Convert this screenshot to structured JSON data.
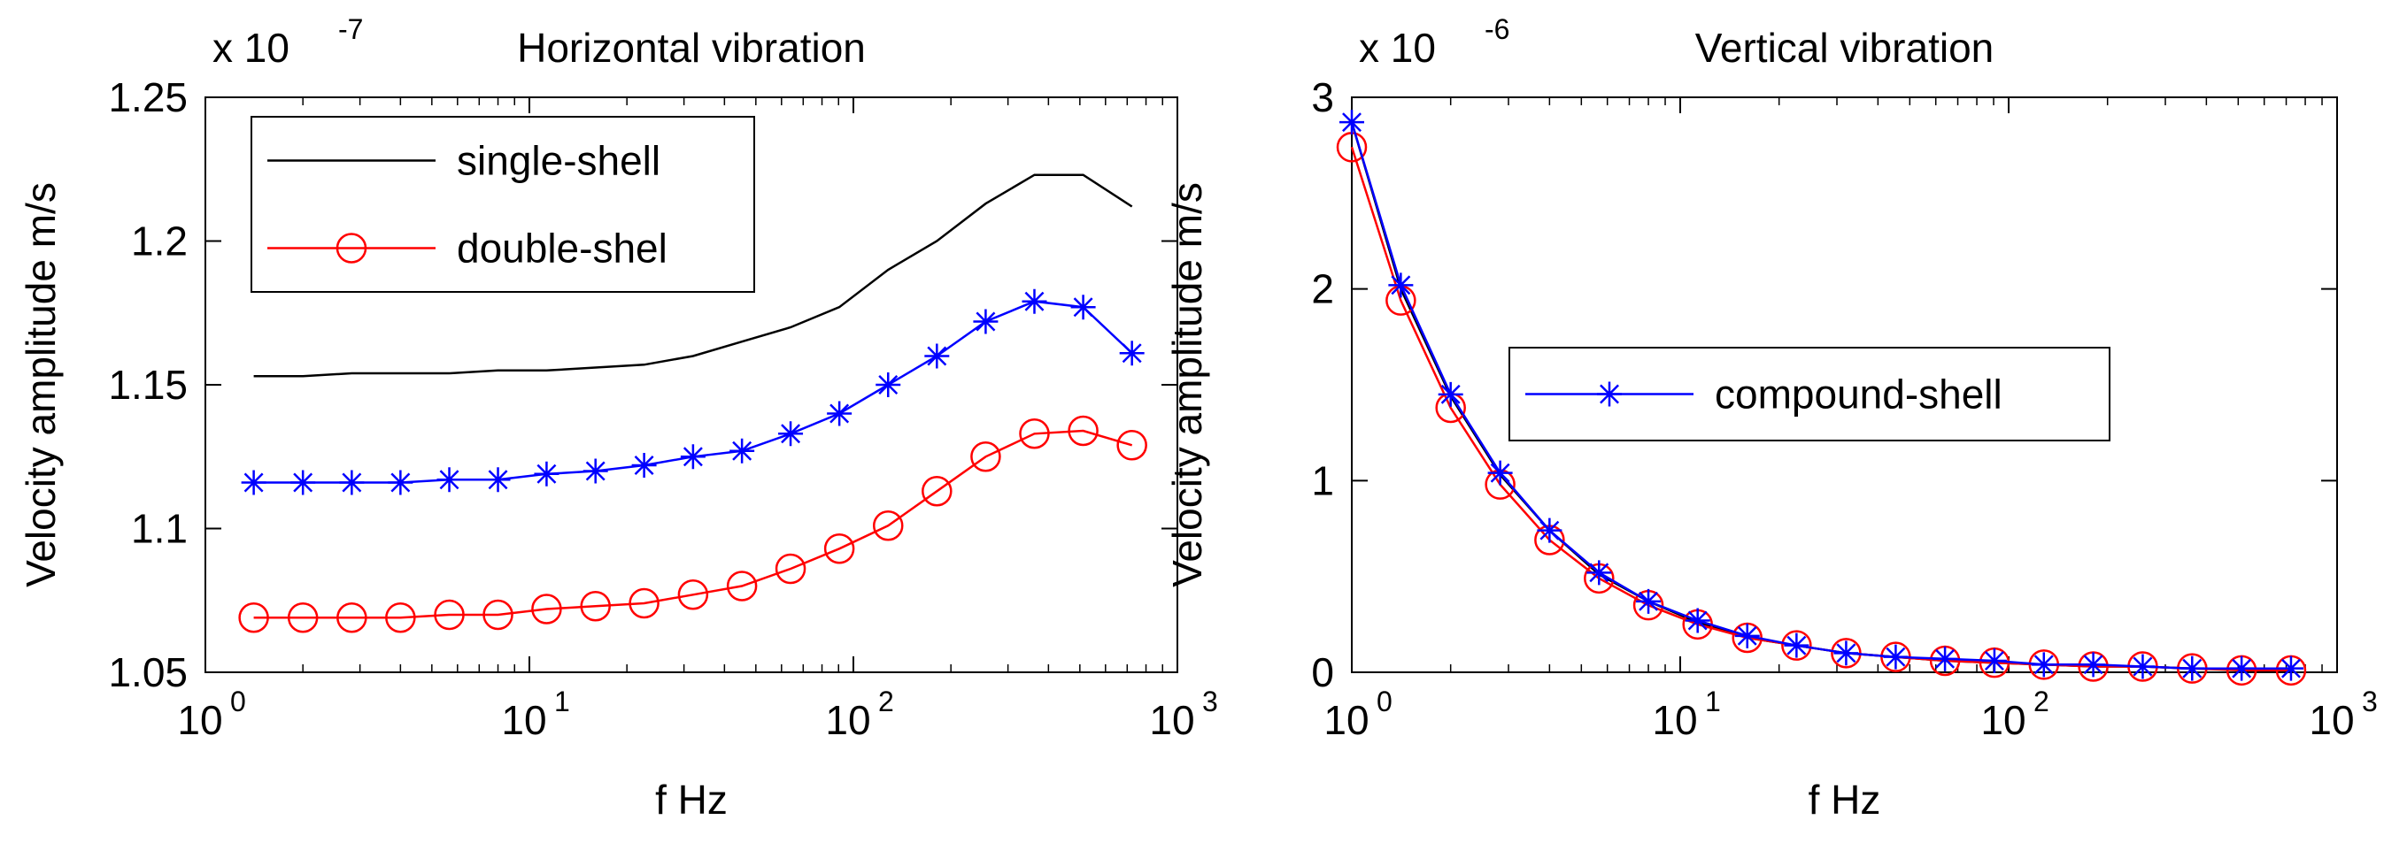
{
  "chart_data": [
    {
      "type": "line",
      "title": "Horizontal vibration",
      "xlabel": "f Hz",
      "ylabel": "Velocity amplitude m/s",
      "xscale": "log",
      "xlim": [
        1,
        1000
      ],
      "ylim": [
        1.05,
        1.25
      ],
      "exponent_label": "x 10",
      "exponent_power": "-7",
      "xticks": [
        1,
        10,
        100,
        1000
      ],
      "xtick_base": "10",
      "xtick_powers": [
        "0",
        "1",
        "2",
        "3"
      ],
      "yticks": [
        1.05,
        1.1,
        1.15,
        1.2,
        1.25
      ],
      "ytick_labels": [
        "1.05",
        "1.1",
        "1.15",
        "1.2",
        "1.25"
      ],
      "legend_position": "top-left",
      "legend": [
        "single-shell",
        "double-shel"
      ],
      "series": [
        {
          "name": "single-shell",
          "color": "#000000",
          "marker": "none",
          "x": [
            1.41,
            2,
            2.83,
            4,
            5.66,
            8,
            11.3,
            16,
            22.6,
            32,
            45.3,
            64,
            90.5,
            128,
            181,
            256,
            362,
            512,
            724
          ],
          "values": [
            1.153,
            1.153,
            1.154,
            1.154,
            1.154,
            1.155,
            1.155,
            1.156,
            1.157,
            1.16,
            1.165,
            1.17,
            1.177,
            1.19,
            1.2,
            1.213,
            1.223,
            1.223,
            1.212
          ]
        },
        {
          "name": "double-shel",
          "color": "#ff0000",
          "marker": "circle",
          "x": [
            1.41,
            2,
            2.83,
            4,
            5.66,
            8,
            11.3,
            16,
            22.6,
            32,
            45.3,
            64,
            90.5,
            128,
            181,
            256,
            362,
            512,
            724
          ],
          "values": [
            1.069,
            1.069,
            1.069,
            1.069,
            1.07,
            1.07,
            1.072,
            1.073,
            1.074,
            1.077,
            1.08,
            1.086,
            1.093,
            1.101,
            1.113,
            1.125,
            1.133,
            1.134,
            1.129
          ]
        },
        {
          "name": "compound-shell",
          "color": "#0000ff",
          "marker": "star",
          "x": [
            1.41,
            2,
            2.83,
            4,
            5.66,
            8,
            11.3,
            16,
            22.6,
            32,
            45.3,
            64,
            90.5,
            128,
            181,
            256,
            362,
            512,
            724
          ],
          "values": [
            1.116,
            1.116,
            1.116,
            1.116,
            1.117,
            1.117,
            1.119,
            1.12,
            1.122,
            1.125,
            1.127,
            1.133,
            1.14,
            1.15,
            1.16,
            1.172,
            1.179,
            1.177,
            1.161
          ]
        }
      ]
    },
    {
      "type": "line",
      "title": "Vertical vibration",
      "xlabel": "f Hz",
      "ylabel": "Velocity amplitude m/s",
      "xscale": "log",
      "xlim": [
        1,
        1000
      ],
      "ylim": [
        0,
        3
      ],
      "exponent_label": "x 10",
      "exponent_power": "-6",
      "xticks": [
        1,
        10,
        100,
        1000
      ],
      "xtick_base": "10",
      "xtick_powers": [
        "0",
        "1",
        "2",
        "3"
      ],
      "yticks": [
        0,
        1,
        2,
        3
      ],
      "ytick_labels": [
        "0",
        "1",
        "2",
        "3"
      ],
      "legend_position": "center",
      "legend": [
        "compound-shell"
      ],
      "series": [
        {
          "name": "single-shell",
          "color": "#000000",
          "marker": "none",
          "x": [
            1,
            1.41,
            2,
            2.83,
            4,
            5.66,
            8,
            11.3,
            16,
            22.6,
            32,
            45.3,
            64,
            90.5,
            128,
            181,
            256,
            362,
            512,
            724
          ],
          "values": [
            2.87,
            2.0,
            1.44,
            1.03,
            0.74,
            0.51,
            0.37,
            0.26,
            0.18,
            0.14,
            0.1,
            0.08,
            0.06,
            0.05,
            0.04,
            0.03,
            0.03,
            0.02,
            0.02,
            0.02
          ]
        },
        {
          "name": "double-shel",
          "color": "#ff0000",
          "marker": "circle",
          "x": [
            1,
            1.41,
            2,
            2.83,
            4,
            5.66,
            8,
            11.3,
            16,
            22.6,
            32,
            45.3,
            64,
            90.5,
            128,
            181,
            256,
            362,
            512,
            724
          ],
          "values": [
            2.74,
            1.94,
            1.38,
            0.98,
            0.69,
            0.49,
            0.35,
            0.25,
            0.18,
            0.14,
            0.1,
            0.08,
            0.06,
            0.05,
            0.04,
            0.03,
            0.03,
            0.02,
            0.01,
            0.01
          ]
        },
        {
          "name": "compound-shell",
          "color": "#0000ff",
          "marker": "star",
          "x": [
            1,
            1.41,
            2,
            2.83,
            4,
            5.66,
            8,
            11.3,
            16,
            22.6,
            32,
            45.3,
            64,
            90.5,
            128,
            181,
            256,
            362,
            512,
            724
          ],
          "values": [
            2.87,
            2.02,
            1.45,
            1.04,
            0.74,
            0.52,
            0.37,
            0.27,
            0.19,
            0.14,
            0.1,
            0.08,
            0.07,
            0.06,
            0.04,
            0.04,
            0.03,
            0.02,
            0.02,
            0.02
          ]
        }
      ]
    }
  ]
}
